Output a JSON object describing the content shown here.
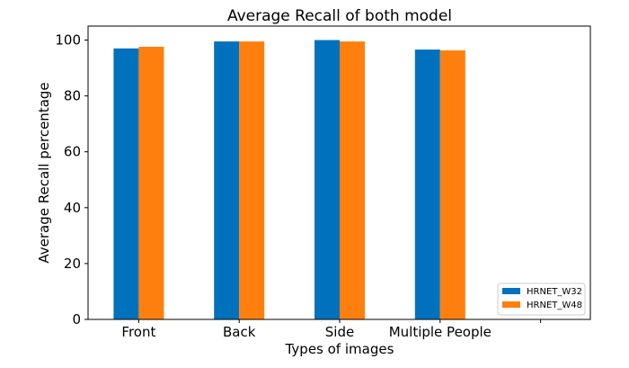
{
  "chart_data": {
    "type": "bar",
    "title": "Average Recall of both model",
    "xlabel": "Types of images",
    "ylabel": "Average Recall percentage",
    "categories": [
      "Front",
      "Back",
      "Side",
      "Multiple People"
    ],
    "series": [
      {
        "name": "HRNET_W32",
        "color": "#0072bd",
        "values": [
          97.0,
          99.5,
          100.0,
          96.6
        ]
      },
      {
        "name": "HRNET_W48",
        "color": "#ff7f0e",
        "values": [
          97.6,
          99.5,
          99.5,
          96.3
        ]
      }
    ],
    "ylim": [
      0,
      105
    ],
    "yticks": [
      0,
      20,
      40,
      60,
      80,
      100
    ],
    "grid": false,
    "legend_position": "bottom-right"
  }
}
